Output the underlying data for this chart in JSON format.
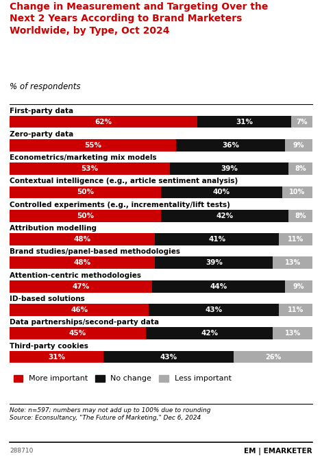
{
  "title": "Change in Measurement and Targeting Over the\nNext 2 Years According to Brand Marketers\nWorldwide, by Type, Oct 2024",
  "subtitle": "% of respondents",
  "categories": [
    "First-party data",
    "Zero-party data",
    "Econometrics/marketing mix models",
    "Contextual intelligence (e.g., article sentiment analysis)",
    "Controlled experiments (e.g., incrementality/lift tests)",
    "Attribution modelling",
    "Brand studies/panel-based methodologies",
    "Attention-centric methodologies",
    "ID-based solutions",
    "Data partnerships/second-party data",
    "Third-party cookies"
  ],
  "more_important": [
    62,
    55,
    53,
    50,
    50,
    48,
    48,
    47,
    46,
    45,
    31
  ],
  "no_change": [
    31,
    36,
    39,
    40,
    42,
    41,
    39,
    44,
    43,
    42,
    43
  ],
  "less_important": [
    7,
    9,
    8,
    10,
    8,
    11,
    13,
    9,
    11,
    13,
    26
  ],
  "colors": {
    "more_important": "#cc0000",
    "no_change": "#111111",
    "less_important": "#aaaaaa"
  },
  "note": "Note: n=597; numbers may not add up to 100% due to rounding\nSource: Econsultancy, \"The Future of Marketing,\" Dec 6, 2024",
  "watermark": "288710",
  "background_color": "#ffffff"
}
